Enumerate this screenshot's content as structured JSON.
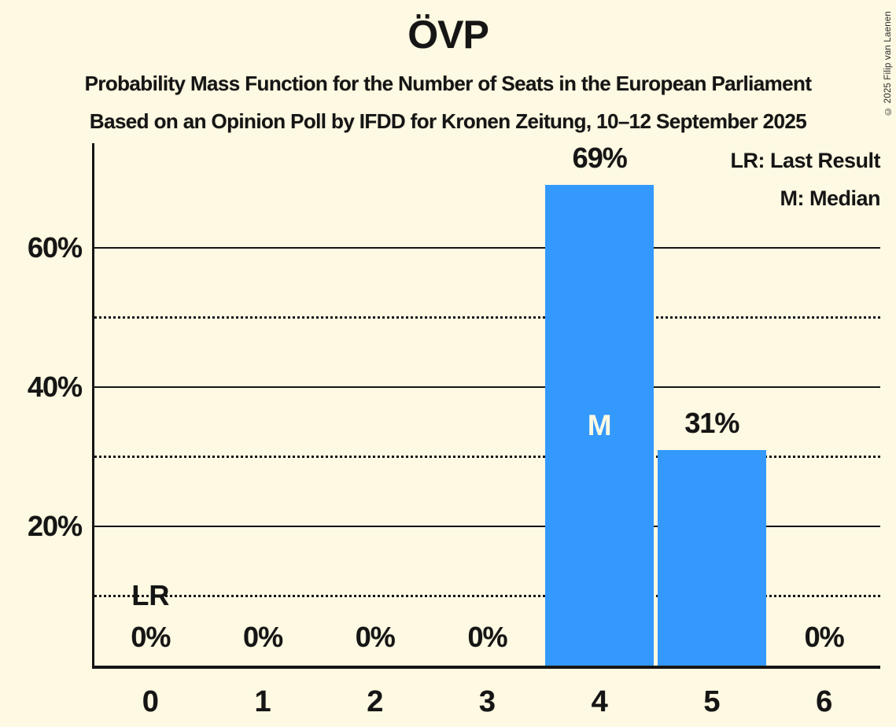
{
  "copyright": "© 2025 Filip van Laenen",
  "colors": {
    "background": "#FEF9E2",
    "bar": "#3499FC",
    "text": "#151515",
    "median_text": "#FEF9E2"
  },
  "chart_data": {
    "type": "bar",
    "title": "ÖVP",
    "subtitle1": "Probability Mass Function for the Number of Seats in the European Parliament",
    "subtitle2": "Based on an Opinion Poll by IFDD for Kronen Zeitung, 10–12 September 2025",
    "legend": {
      "lr": "LR: Last Result",
      "m": "M: Median"
    },
    "legend_position": "top-right",
    "grid": "horizontal",
    "categories": [
      "0",
      "1",
      "2",
      "3",
      "4",
      "5",
      "6"
    ],
    "values": [
      0,
      0,
      0,
      0,
      69,
      31,
      0
    ],
    "value_labels": [
      "0%",
      "0%",
      "0%",
      "0%",
      "69%",
      "31%",
      "0%"
    ],
    "ylim": [
      0,
      75
    ],
    "yticks_solid": [
      {
        "value": 20,
        "label": "20%"
      },
      {
        "value": 40,
        "label": "40%"
      },
      {
        "value": 60,
        "label": "60%"
      }
    ],
    "yticks_dotted": [
      10,
      30,
      50
    ],
    "annotations": {
      "median": {
        "category": "4",
        "label": "M"
      },
      "last_result": {
        "category": "0",
        "label": "LR",
        "at_value": 10
      }
    }
  }
}
